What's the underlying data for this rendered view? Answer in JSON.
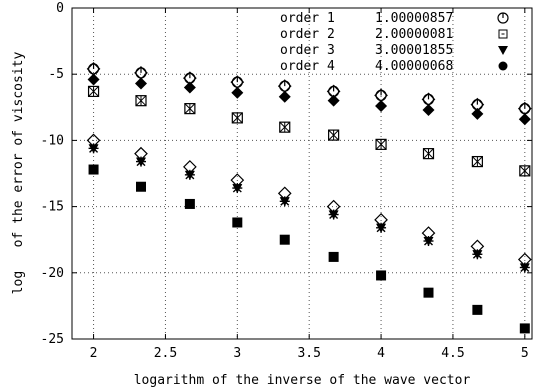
{
  "chart_data": {
    "type": "scatter",
    "xlabel": "logarithm of the inverse of the wave vector",
    "ylabel": "log   of the error of viscosity",
    "xlim": [
      1.85,
      5.05
    ],
    "ylim": [
      -25,
      0
    ],
    "xticks": [
      "2",
      "2.5",
      "3",
      "3.5",
      "4",
      "4.5",
      "5"
    ],
    "yticks": [
      "0",
      "-5",
      "-10",
      "-15",
      "-20",
      "-25"
    ],
    "xtick_values": [
      2,
      2.5,
      3,
      3.5,
      4,
      4.5,
      5
    ],
    "ytick_values": [
      0,
      -5,
      -10,
      -15,
      -20,
      -25
    ],
    "grid": true,
    "legend_position": "top-right",
    "x": [
      2.0,
      2.33,
      2.67,
      3.0,
      3.33,
      3.67,
      4.0,
      4.33,
      4.67,
      5.0
    ],
    "series": [
      {
        "name": "order 1",
        "slope": "1.00000857",
        "marker": "circle-open",
        "values": [
          -4.6,
          -4.9,
          -5.3,
          -5.6,
          -5.9,
          -6.3,
          -6.6,
          -6.9,
          -7.3,
          -7.6
        ]
      },
      {
        "name": "order 2",
        "slope": "2.00000081",
        "marker": "square-open-x",
        "values": [
          -6.3,
          -7.0,
          -7.6,
          -8.3,
          -9.0,
          -9.6,
          -10.3,
          -11.0,
          -11.6,
          -12.3
        ]
      },
      {
        "name": "order 3",
        "slope": "3.00001855",
        "marker": "triangle-down-filled",
        "values": [
          -10.6,
          -11.6,
          -12.6,
          -13.6,
          -14.6,
          -15.6,
          -16.6,
          -17.6,
          -18.6,
          -19.6
        ]
      },
      {
        "name": "order 4",
        "slope": "4.00000068",
        "marker": "circle-filled",
        "values": [
          -12.2,
          -13.5,
          -14.8,
          -16.2,
          -17.5,
          -18.8,
          -20.2,
          -21.5,
          -22.8,
          -24.2
        ]
      }
    ],
    "extra_markers": [
      {
        "marker": "diamond-open",
        "values": [
          -4.6,
          -4.9,
          -5.3,
          -5.6,
          -5.9,
          -6.3,
          -6.6,
          -6.9,
          -7.3,
          -7.6
        ]
      },
      {
        "marker": "diamond-filled",
        "values": [
          -5.4,
          -5.7,
          -6.0,
          -6.4,
          -6.7,
          -7.0,
          -7.4,
          -7.7,
          -8.0,
          -8.4
        ]
      },
      {
        "marker": "diamond-open",
        "values": [
          -10.0,
          -11.0,
          -12.0,
          -13.0,
          -14.0,
          -15.0,
          -16.0,
          -17.0,
          -18.0,
          -19.0
        ]
      },
      {
        "marker": "star",
        "values": [
          -10.6,
          -11.6,
          -12.6,
          -13.6,
          -14.6,
          -15.6,
          -16.6,
          -17.6,
          -18.6,
          -19.6
        ]
      },
      {
        "marker": "square-filled",
        "values": [
          -12.2,
          -13.5,
          -14.8,
          -16.2,
          -17.5,
          -18.8,
          -20.2,
          -21.5,
          -22.8,
          -24.2
        ]
      }
    ]
  }
}
